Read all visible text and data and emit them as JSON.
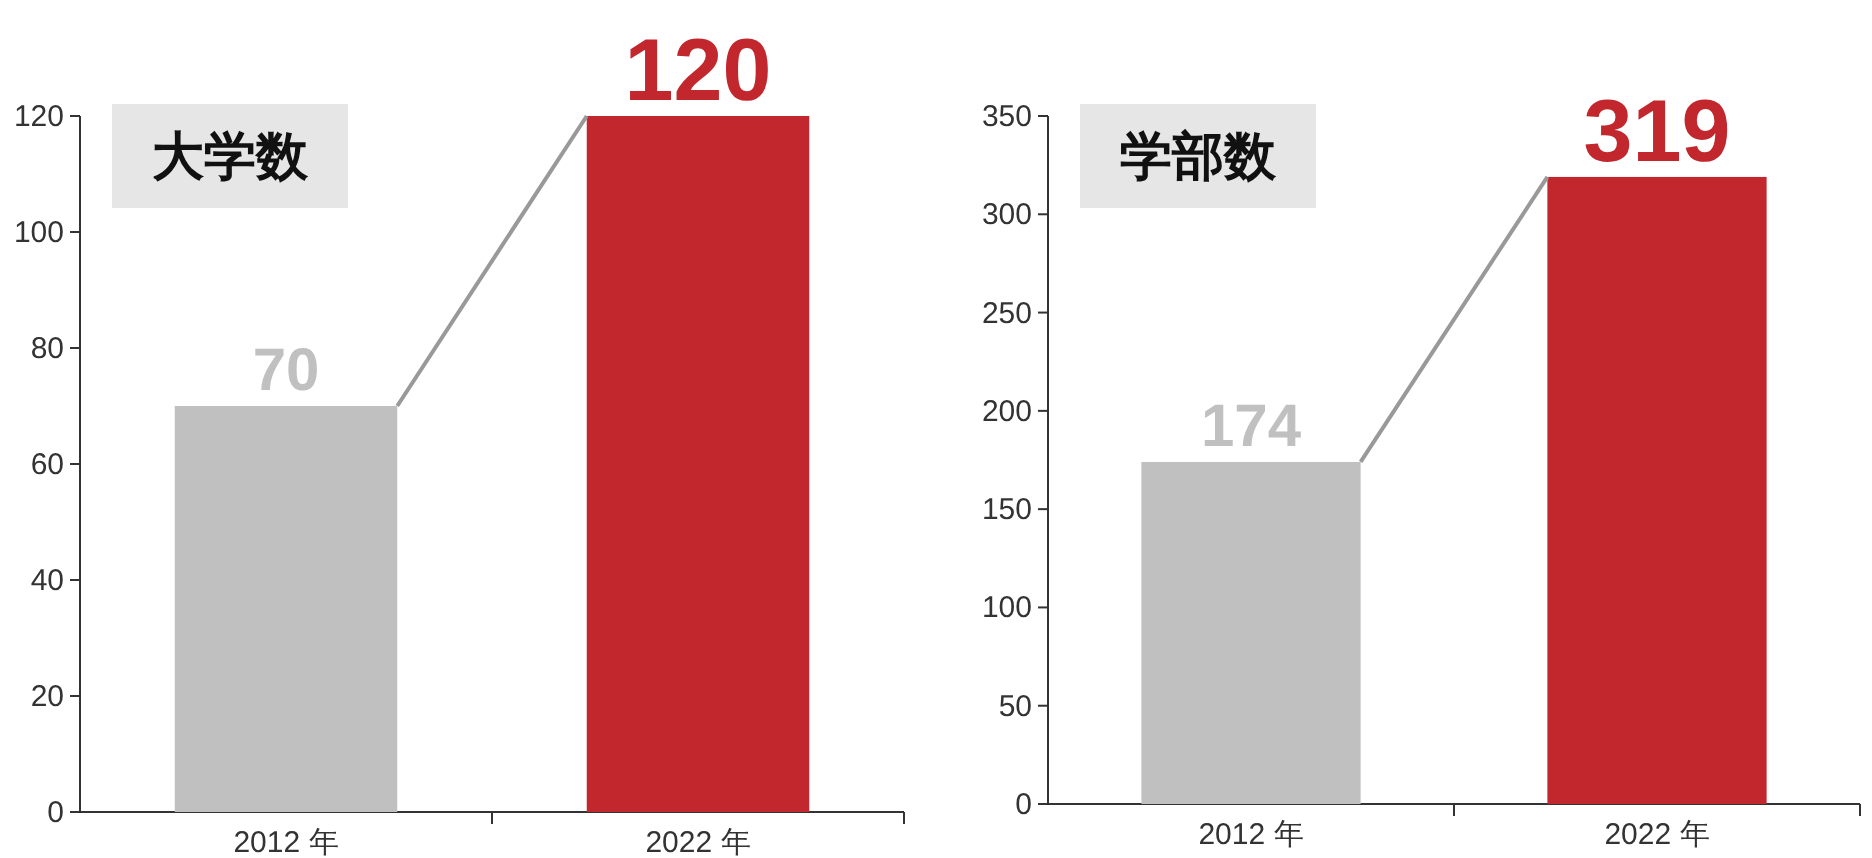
{
  "chart_data": [
    {
      "type": "bar",
      "title": "大学数",
      "categories": [
        "2012 年",
        "2022 年"
      ],
      "values": [
        70,
        120
      ],
      "colors": [
        "#c0c0c0",
        "#c1272d"
      ],
      "ylim": [
        0,
        120
      ],
      "yticks": [
        0,
        20,
        40,
        60,
        80,
        100,
        120
      ],
      "data_labels": true
    },
    {
      "type": "bar",
      "title": "学部数",
      "categories": [
        "2012 年",
        "2022 年"
      ],
      "values": [
        174,
        319
      ],
      "colors": [
        "#c0c0c0",
        "#c1272d"
      ],
      "ylim": [
        0,
        350
      ],
      "yticks": [
        0,
        50,
        100,
        150,
        200,
        250,
        300,
        350
      ],
      "data_labels": true
    }
  ]
}
